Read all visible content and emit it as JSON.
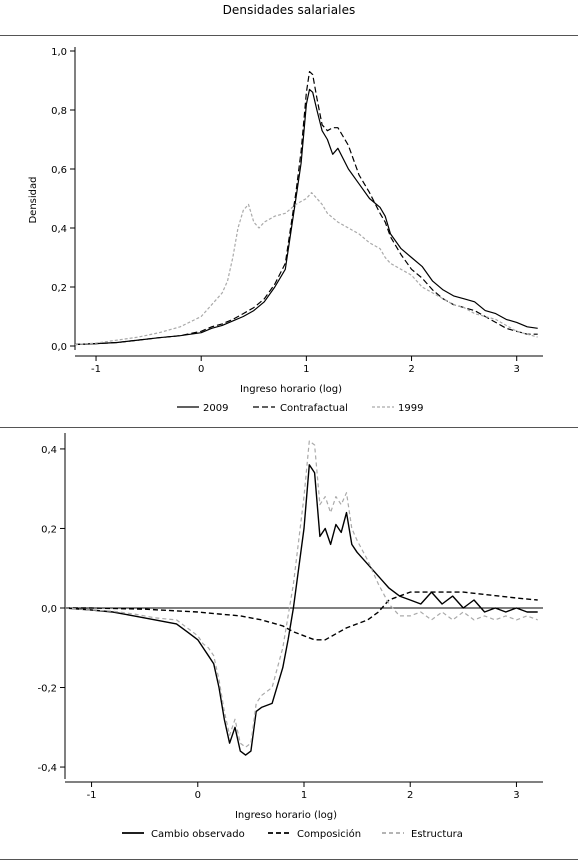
{
  "page": {
    "title": "Densidades salariales"
  },
  "chart_data": [
    {
      "type": "line",
      "xlabel": "Ingreso horario (log)",
      "ylabel": "Densidad",
      "xlim": [
        -1.2,
        3.25
      ],
      "ylim": [
        0,
        1.0
      ],
      "xticks": [
        -1,
        0,
        1,
        2,
        3
      ],
      "xtick_labels": [
        "-1",
        "0",
        "1",
        "2",
        "3"
      ],
      "yticks": [
        0,
        0.2,
        0.4,
        0.6,
        0.8,
        1.0
      ],
      "ytick_labels": [
        "0,0",
        "0,2",
        "0,4",
        "0,6",
        "0,8",
        "1,0"
      ],
      "legend_position": "bottom",
      "series": [
        {
          "name": "2009",
          "color": "#000000",
          "dash": "",
          "x": [
            -1.2,
            -1.0,
            -0.8,
            -0.6,
            -0.4,
            -0.2,
            0.0,
            0.1,
            0.2,
            0.3,
            0.4,
            0.5,
            0.6,
            0.7,
            0.8,
            0.9,
            0.95,
            1.0,
            1.03,
            1.06,
            1.1,
            1.15,
            1.2,
            1.25,
            1.3,
            1.4,
            1.5,
            1.6,
            1.7,
            1.75,
            1.8,
            1.9,
            2.0,
            2.1,
            2.2,
            2.3,
            2.4,
            2.5,
            2.6,
            2.7,
            2.8,
            2.9,
            3.0,
            3.1,
            3.2
          ],
          "y": [
            0.005,
            0.008,
            0.012,
            0.02,
            0.028,
            0.035,
            0.045,
            0.06,
            0.07,
            0.085,
            0.1,
            0.12,
            0.15,
            0.2,
            0.26,
            0.5,
            0.62,
            0.82,
            0.87,
            0.86,
            0.8,
            0.73,
            0.7,
            0.65,
            0.67,
            0.6,
            0.55,
            0.5,
            0.47,
            0.44,
            0.38,
            0.33,
            0.3,
            0.27,
            0.22,
            0.19,
            0.17,
            0.16,
            0.15,
            0.12,
            0.11,
            0.09,
            0.08,
            0.065,
            0.06
          ]
        },
        {
          "name": "Contrafactual",
          "color": "#000000",
          "dash": "6,3",
          "x": [
            -1.2,
            -1.0,
            -0.8,
            -0.6,
            -0.4,
            -0.2,
            0.0,
            0.1,
            0.2,
            0.3,
            0.4,
            0.5,
            0.6,
            0.7,
            0.8,
            0.9,
            0.95,
            1.0,
            1.03,
            1.06,
            1.1,
            1.15,
            1.2,
            1.25,
            1.3,
            1.4,
            1.5,
            1.6,
            1.7,
            1.75,
            1.8,
            1.9,
            2.0,
            2.1,
            2.2,
            2.3,
            2.4,
            2.5,
            2.6,
            2.7,
            2.8,
            2.9,
            3.0,
            3.1,
            3.2
          ],
          "y": [
            0.005,
            0.008,
            0.012,
            0.02,
            0.028,
            0.035,
            0.05,
            0.065,
            0.075,
            0.09,
            0.11,
            0.13,
            0.16,
            0.21,
            0.28,
            0.52,
            0.66,
            0.86,
            0.93,
            0.92,
            0.84,
            0.75,
            0.73,
            0.74,
            0.74,
            0.68,
            0.58,
            0.52,
            0.45,
            0.42,
            0.37,
            0.31,
            0.26,
            0.23,
            0.19,
            0.16,
            0.14,
            0.13,
            0.12,
            0.1,
            0.08,
            0.06,
            0.05,
            0.04,
            0.04
          ]
        },
        {
          "name": "1999",
          "color": "#aaaaaa",
          "dash": "3,2",
          "x": [
            -1.2,
            -1.0,
            -0.8,
            -0.6,
            -0.4,
            -0.2,
            0.0,
            0.1,
            0.2,
            0.25,
            0.3,
            0.35,
            0.4,
            0.45,
            0.5,
            0.55,
            0.6,
            0.7,
            0.8,
            0.9,
            1.0,
            1.05,
            1.1,
            1.15,
            1.2,
            1.3,
            1.4,
            1.5,
            1.6,
            1.7,
            1.75,
            1.8,
            1.9,
            2.0,
            2.1,
            2.2,
            2.3,
            2.4,
            2.5,
            2.6,
            2.7,
            2.8,
            2.9,
            3.0,
            3.1,
            3.2
          ],
          "y": [
            0.005,
            0.01,
            0.02,
            0.03,
            0.045,
            0.065,
            0.1,
            0.14,
            0.18,
            0.22,
            0.3,
            0.4,
            0.46,
            0.48,
            0.42,
            0.4,
            0.42,
            0.44,
            0.45,
            0.48,
            0.5,
            0.52,
            0.5,
            0.48,
            0.45,
            0.42,
            0.4,
            0.38,
            0.35,
            0.33,
            0.3,
            0.28,
            0.26,
            0.24,
            0.2,
            0.18,
            0.16,
            0.14,
            0.13,
            0.11,
            0.1,
            0.09,
            0.07,
            0.05,
            0.04,
            0.03
          ]
        }
      ]
    },
    {
      "type": "line",
      "xlabel": "Ingreso horario (log)",
      "ylabel": "",
      "xlim": [
        -1.25,
        3.25
      ],
      "ylim": [
        -0.42,
        0.43
      ],
      "xticks": [
        -1,
        0,
        1,
        2,
        3
      ],
      "xtick_labels": [
        "-1",
        "0",
        "1",
        "2",
        "3"
      ],
      "yticks": [
        -0.4,
        -0.2,
        0.0,
        0.2,
        0.4
      ],
      "ytick_labels": [
        "-0,4",
        "-0,2",
        "0,0",
        "0,2",
        "0,4"
      ],
      "zero_line": true,
      "legend_position": "bottom",
      "series": [
        {
          "name": "Cambio observado",
          "color": "#000000",
          "dash": "",
          "x": [
            -1.25,
            -1.0,
            -0.8,
            -0.6,
            -0.4,
            -0.2,
            -0.1,
            0.0,
            0.05,
            0.1,
            0.15,
            0.2,
            0.25,
            0.3,
            0.35,
            0.4,
            0.45,
            0.5,
            0.55,
            0.6,
            0.7,
            0.8,
            0.85,
            0.9,
            0.95,
            1.0,
            1.05,
            1.1,
            1.15,
            1.2,
            1.25,
            1.3,
            1.35,
            1.4,
            1.45,
            1.5,
            1.6,
            1.7,
            1.8,
            1.9,
            2.0,
            2.1,
            2.2,
            2.3,
            2.4,
            2.5,
            2.6,
            2.7,
            2.8,
            2.9,
            3.0,
            3.1,
            3.2
          ],
          "y": [
            0.0,
            -0.005,
            -0.01,
            -0.02,
            -0.03,
            -0.04,
            -0.06,
            -0.08,
            -0.1,
            -0.12,
            -0.14,
            -0.2,
            -0.28,
            -0.34,
            -0.3,
            -0.36,
            -0.37,
            -0.36,
            -0.26,
            -0.25,
            -0.24,
            -0.15,
            -0.08,
            0.0,
            0.1,
            0.2,
            0.36,
            0.34,
            0.18,
            0.2,
            0.16,
            0.21,
            0.19,
            0.24,
            0.16,
            0.14,
            0.11,
            0.08,
            0.05,
            0.03,
            0.02,
            0.01,
            0.04,
            0.01,
            0.03,
            0.0,
            0.02,
            -0.01,
            0.0,
            -0.01,
            0.0,
            -0.01,
            -0.01
          ]
        },
        {
          "name": "Composición",
          "color": "#000000",
          "dash": "5,3",
          "x": [
            -1.25,
            -1.0,
            -0.5,
            0.0,
            0.2,
            0.4,
            0.6,
            0.8,
            0.9,
            1.0,
            1.1,
            1.2,
            1.3,
            1.4,
            1.5,
            1.6,
            1.7,
            1.8,
            2.0,
            2.5,
            3.0,
            3.2
          ],
          "y": [
            0.0,
            0.0,
            -0.003,
            -0.01,
            -0.015,
            -0.02,
            -0.03,
            -0.045,
            -0.06,
            -0.07,
            -0.08,
            -0.08,
            -0.065,
            -0.05,
            -0.04,
            -0.03,
            -0.01,
            0.02,
            0.04,
            0.04,
            0.025,
            0.02
          ]
        },
        {
          "name": "Estructura",
          "color": "#aaaaaa",
          "dash": "4,3",
          "x": [
            -1.25,
            -1.0,
            -0.8,
            -0.6,
            -0.4,
            -0.2,
            -0.1,
            0.0,
            0.05,
            0.1,
            0.15,
            0.2,
            0.25,
            0.3,
            0.35,
            0.4,
            0.45,
            0.5,
            0.55,
            0.6,
            0.7,
            0.8,
            0.85,
            0.9,
            0.95,
            1.0,
            1.05,
            1.1,
            1.15,
            1.2,
            1.25,
            1.3,
            1.35,
            1.4,
            1.45,
            1.5,
            1.6,
            1.7,
            1.8,
            1.9,
            2.0,
            2.1,
            2.2,
            2.3,
            2.4,
            2.5,
            2.6,
            2.7,
            2.8,
            2.9,
            3.0,
            3.1,
            3.2
          ],
          "y": [
            0.0,
            -0.005,
            -0.008,
            -0.015,
            -0.025,
            -0.03,
            -0.05,
            -0.07,
            -0.09,
            -0.1,
            -0.12,
            -0.18,
            -0.26,
            -0.32,
            -0.28,
            -0.34,
            -0.35,
            -0.34,
            -0.24,
            -0.22,
            -0.2,
            -0.1,
            -0.02,
            0.06,
            0.17,
            0.28,
            0.42,
            0.41,
            0.26,
            0.28,
            0.24,
            0.28,
            0.26,
            0.29,
            0.2,
            0.17,
            0.12,
            0.06,
            0.01,
            -0.02,
            -0.02,
            -0.01,
            -0.03,
            -0.01,
            -0.03,
            -0.01,
            -0.03,
            -0.02,
            -0.03,
            -0.02,
            -0.03,
            -0.02,
            -0.03
          ]
        }
      ]
    }
  ]
}
